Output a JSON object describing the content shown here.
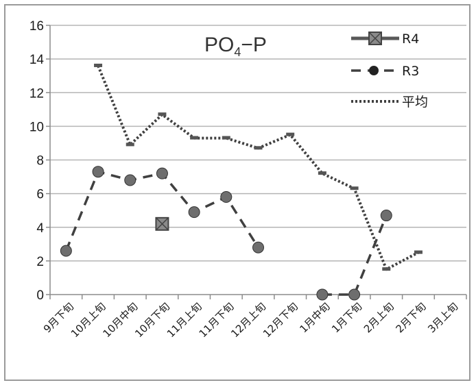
{
  "chart_data": {
    "type": "line",
    "title": "PO4−P",
    "title_parts": {
      "main": "PO",
      "subscript": "4",
      "suffix": "−P"
    },
    "categories": [
      "9月下旬",
      "10月上旬",
      "10月中旬",
      "10月下旬",
      "11月上旬",
      "11月下旬",
      "12月上旬",
      "12月下旬",
      "1月中旬",
      "1月下旬",
      "2月上旬",
      "2月下旬",
      "3月上旬"
    ],
    "ylim": [
      0,
      16
    ],
    "yticks": [
      "0",
      "2",
      "4",
      "6",
      "8",
      "10",
      "12",
      "14",
      "16"
    ],
    "grid": true,
    "legend_position": "top-right",
    "series": [
      {
        "name": "R4",
        "style": "solid-square",
        "color": "#595959",
        "values": [
          null,
          null,
          null,
          4.2,
          null,
          null,
          null,
          null,
          null,
          null,
          null,
          null,
          null
        ]
      },
      {
        "name": "R3",
        "style": "dashed-circle",
        "color": "#404040",
        "values": [
          2.6,
          7.3,
          6.8,
          7.2,
          4.9,
          5.8,
          2.8,
          null,
          0,
          0,
          4.7,
          null,
          null
        ]
      },
      {
        "name": "平均",
        "style": "dotted",
        "color": "#404040",
        "values": [
          null,
          13.6,
          8.9,
          10.7,
          9.3,
          9.3,
          8.7,
          9.5,
          7.2,
          6.3,
          1.5,
          2.5,
          null
        ]
      }
    ]
  }
}
